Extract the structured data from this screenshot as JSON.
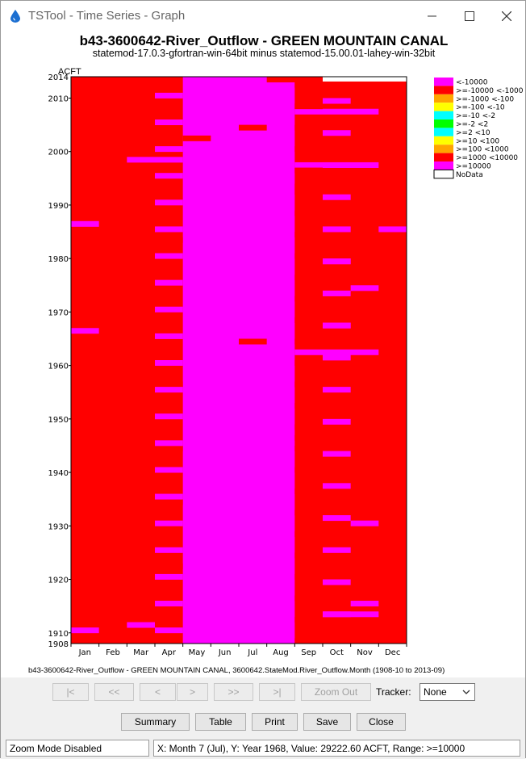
{
  "window": {
    "title": "TSTool - Time Series - Graph"
  },
  "graph": {
    "title": "b43-3600642-River_Outflow - GREEN MOUNTAIN CANAL",
    "subtitle": "statemod-17.0.3-gfortran-win-64bit minus statemod-15.00.01-lahey-win-32bit",
    "y_units": "ACFT",
    "period_label": "b43-3600642-River_Outflow - GREEN MOUNTAIN CANAL, 3600642.StateMod.River_Outflow.Month (1908-10 to 2013-09)"
  },
  "chart_data": {
    "type": "heatmap",
    "x_categories": [
      "Jan",
      "Feb",
      "Mar",
      "Apr",
      "May",
      "Jun",
      "Jul",
      "Aug",
      "Sep",
      "Oct",
      "Nov",
      "Dec"
    ],
    "y_range": [
      1908,
      2014
    ],
    "y_ticks": [
      "1910",
      "1920",
      "1930",
      "1940",
      "1950",
      "1960",
      "1970",
      "1980",
      "1990",
      "2000",
      "2010"
    ],
    "y_min_label": "1908",
    "y_max_label": "2014",
    "legend": [
      {
        "label": "<-10000",
        "color": "#ff00ff"
      },
      {
        "label": ">=-10000 <-1000",
        "color": "#ff0000"
      },
      {
        "label": ">=-1000 <-100",
        "color": "#ffa500"
      },
      {
        "label": ">=-100 <-10",
        "color": "#ffff00"
      },
      {
        "label": ">=-10 <-2",
        "color": "#00ffff"
      },
      {
        "label": ">=-2 <2",
        "color": "#00ff00"
      },
      {
        "label": ">=2 <10",
        "color": "#00ffff"
      },
      {
        "label": ">=10 <100",
        "color": "#ffff00"
      },
      {
        "label": ">=100 <1000",
        "color": "#ffa500"
      },
      {
        "label": ">=1000 <10000",
        "color": "#ff0000"
      },
      {
        "label": ">=10000",
        "color": "#ff00ff"
      },
      {
        "label": "NoData",
        "color": "#ffffff"
      }
    ],
    "magenta_months_by_default": [
      "May",
      "Jun",
      "Jul",
      "Aug"
    ],
    "note": "cells colored by class; months Jan-Mar and Oct-Dec mostly >=1000 <10000 (red), May-Aug mostly >=10000 (magenta)"
  },
  "nav_buttons": [
    {
      "label": "|<",
      "enabled": false
    },
    {
      "label": "<<",
      "enabled": false
    },
    {
      "label": "<",
      "enabled": false
    },
    {
      "label": ">",
      "enabled": false
    },
    {
      "label": ">>",
      "enabled": false
    },
    {
      "label": ">|",
      "enabled": false
    },
    {
      "label": "Zoom Out",
      "enabled": false
    }
  ],
  "tracker": {
    "label": "Tracker:",
    "value": "None"
  },
  "actions": {
    "summary": "Summary",
    "table": "Table",
    "print": "Print",
    "save": "Save",
    "close": "Close"
  },
  "status": {
    "zoom": "Zoom Mode Disabled",
    "readout": "X: Month 7 (Jul),  Y: Year 1968, Value: 29222.60 ACFT, Range: >=10000"
  },
  "colors": {
    "red": "#ff0000",
    "magenta": "#ff00ff",
    "nodata": "#ffffff"
  }
}
